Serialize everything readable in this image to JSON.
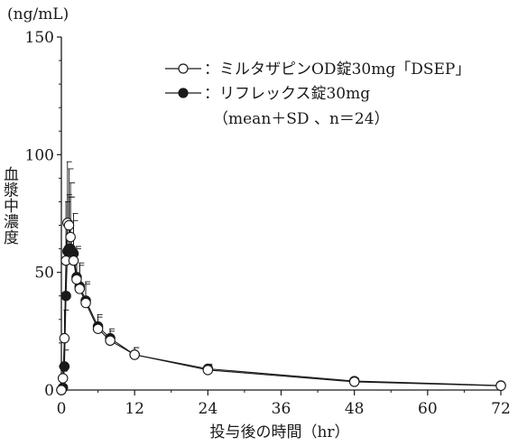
{
  "chart_data": {
    "type": "line",
    "y_unit": "(ng/mL)",
    "ylabel": "血漿中濃度",
    "xlabel": "投与後の時間（hr）",
    "xlim": [
      0,
      72
    ],
    "ylim": [
      0,
      150
    ],
    "x_ticks": [
      0,
      12,
      24,
      36,
      48,
      60,
      72
    ],
    "y_ticks": [
      0,
      50,
      100,
      150
    ],
    "legend": {
      "placement": "top-right",
      "note": "（mean＋SD 、n＝24）"
    },
    "series": [
      {
        "name": "：ミルタザピンOD錠30mg「DSEP」",
        "marker": "open-circle",
        "x": [
          0,
          0.25,
          0.5,
          0.75,
          1,
          1.25,
          1.5,
          2,
          2.5,
          3,
          4,
          6,
          8,
          12,
          24,
          48,
          72
        ],
        "y": [
          0,
          5,
          22,
          55,
          71,
          70,
          65,
          55,
          47,
          43,
          37,
          26,
          21,
          15,
          8.5,
          3.5,
          1.8
        ],
        "sd": [
          0,
          3,
          12,
          25,
          26,
          24,
          23,
          17,
          13,
          10,
          8,
          5,
          4,
          3,
          2,
          1.2,
          0.8
        ]
      },
      {
        "name": "：リフレックス錠30mg",
        "marker": "filled-circle",
        "x": [
          0,
          0.25,
          0.5,
          0.75,
          1,
          1.25,
          1.5,
          2,
          2.5,
          3,
          4,
          6,
          8,
          12,
          24,
          48,
          72
        ],
        "y": [
          0,
          1,
          10,
          40,
          59,
          60,
          60,
          58,
          48,
          44,
          38,
          27,
          22,
          15,
          9,
          3.8,
          1.9
        ],
        "sd": [
          0,
          1,
          7,
          20,
          24,
          22,
          22,
          17,
          13,
          10,
          8,
          5,
          4,
          3,
          2,
          1.2,
          0.8
        ]
      }
    ]
  }
}
